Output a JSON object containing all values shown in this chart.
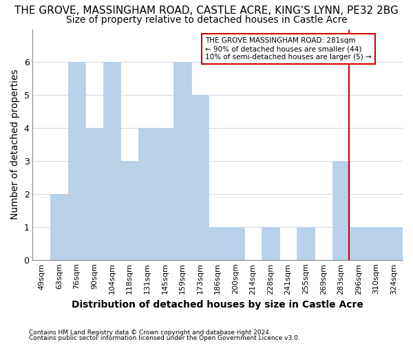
{
  "title": "THE GROVE, MASSINGHAM ROAD, CASTLE ACRE, KING'S LYNN, PE32 2BG",
  "subtitle": "Size of property relative to detached houses in Castle Acre",
  "xlabel": "Distribution of detached houses by size in Castle Acre",
  "ylabel": "Number of detached properties",
  "categories": [
    "49sqm",
    "63sqm",
    "76sqm",
    "90sqm",
    "104sqm",
    "118sqm",
    "131sqm",
    "145sqm",
    "159sqm",
    "173sqm",
    "186sqm",
    "200sqm",
    "214sqm",
    "228sqm",
    "241sqm",
    "255sqm",
    "269sqm",
    "283sqm",
    "296sqm",
    "310sqm",
    "324sqm"
  ],
  "values": [
    0,
    2,
    6,
    4,
    6,
    3,
    4,
    4,
    6,
    5,
    1,
    1,
    0,
    1,
    0,
    1,
    0,
    3,
    1,
    1,
    1
  ],
  "bar_color": "#b8d0e8",
  "bar_edgecolor": "#b8d0e8",
  "ylim": [
    0,
    7
  ],
  "yticks": [
    0,
    1,
    2,
    3,
    4,
    5,
    6,
    7
  ],
  "vline_x_index": 17.45,
  "vline_color": "#cc0000",
  "annotation_text": "THE GROVE MASSINGHAM ROAD: 281sqm\n← 90% of detached houses are smaller (44)\n10% of semi-detached houses are larger (5) →",
  "annotation_box_color": "#ffffff",
  "annotation_border_color": "#cc0000",
  "footer1": "Contains HM Land Registry data © Crown copyright and database right 2024.",
  "footer2": "Contains public sector information licensed under the Open Government Licence v3.0.",
  "bg_color": "#ffffff",
  "plot_bg_color": "#ffffff",
  "grid_color": "#d8d8e8",
  "title_fontsize": 11,
  "subtitle_fontsize": 10,
  "axis_label_fontsize": 10,
  "tick_fontsize": 8
}
